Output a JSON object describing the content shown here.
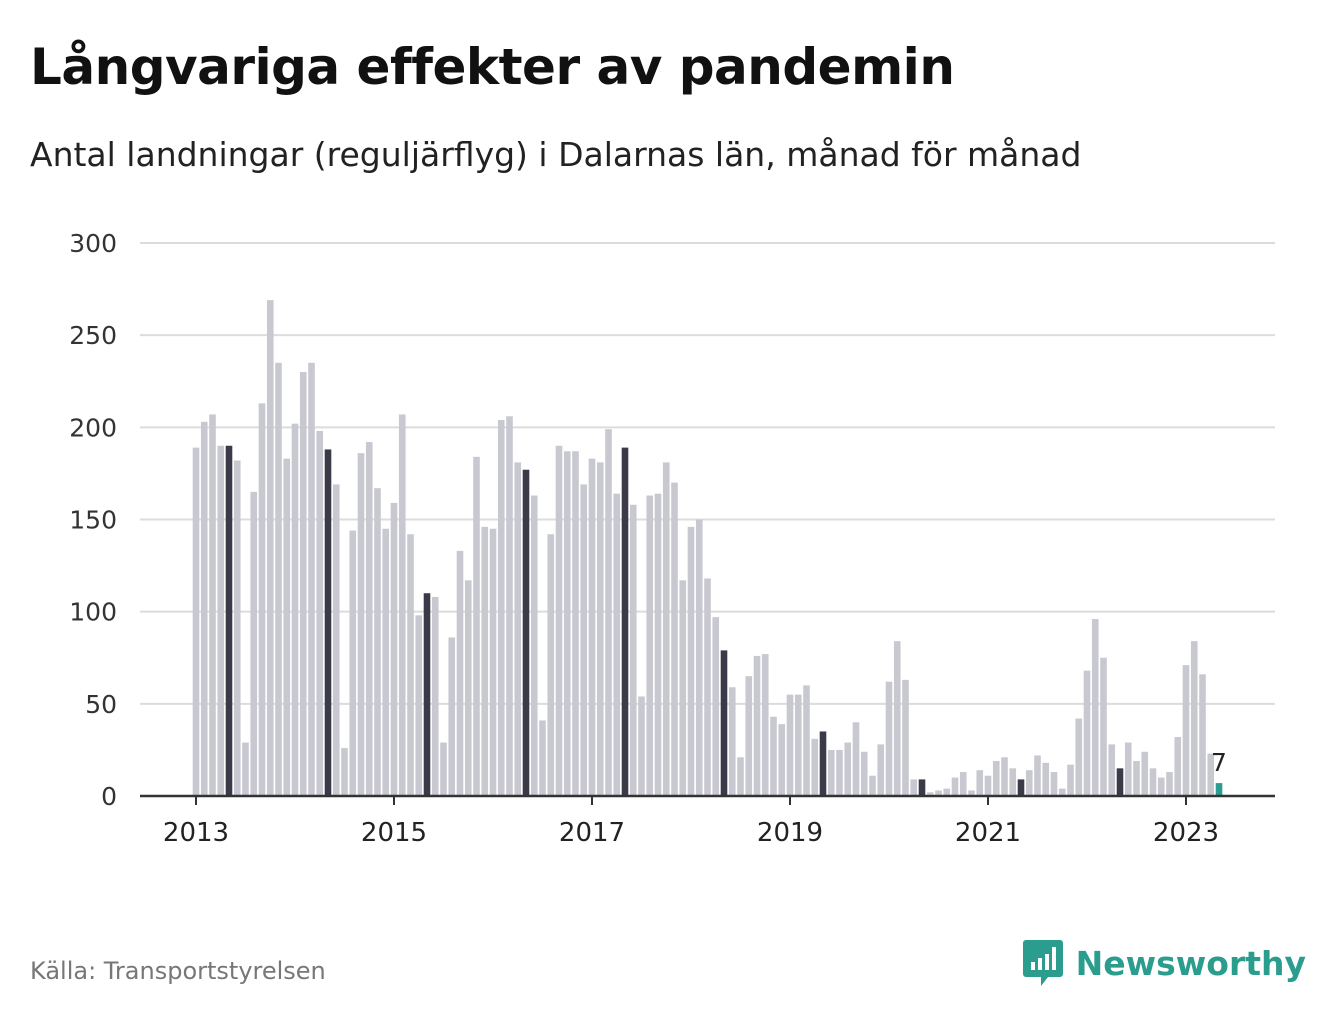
{
  "title": "Långvariga effekter av pandemin",
  "subtitle": "Antal landningar (reguljärflyg) i Dalarnas län, månad för månad",
  "source": "Källa: Transportstyrelsen",
  "brand": {
    "name": "Newsworthy",
    "icon": "newsworthy-logo-icon"
  },
  "colors": {
    "normal": "#c8c8d0",
    "highlight": "#3a3a48",
    "latest": "#2a9d8f",
    "grid": "#dcdcdc",
    "axis": "#333333"
  },
  "chart_data": {
    "type": "bar",
    "ylim": [
      0,
      300
    ],
    "yticks": [
      0,
      50,
      100,
      150,
      200,
      250,
      300
    ],
    "xticks": [
      "2013",
      "2015",
      "2017",
      "2019",
      "2021",
      "2023"
    ],
    "start": "2013-01",
    "highlight_months": [
      "2013-05",
      "2014-05",
      "2015-05",
      "2016-05",
      "2017-05",
      "2018-05",
      "2019-05",
      "2020-05",
      "2021-05",
      "2022-05"
    ],
    "latest_label": "7",
    "values": [
      189,
      203,
      207,
      190,
      190,
      182,
      29,
      165,
      213,
      269,
      235,
      183,
      202,
      230,
      235,
      198,
      188,
      169,
      26,
      144,
      186,
      192,
      167,
      145,
      159,
      207,
      142,
      98,
      110,
      108,
      29,
      86,
      133,
      117,
      184,
      146,
      145,
      204,
      206,
      181,
      177,
      163,
      41,
      142,
      190,
      187,
      187,
      169,
      183,
      181,
      199,
      164,
      189,
      158,
      54,
      163,
      164,
      181,
      170,
      117,
      146,
      150,
      118,
      97,
      79,
      59,
      21,
      65,
      76,
      77,
      43,
      39,
      55,
      55,
      60,
      31,
      35,
      25,
      25,
      29,
      40,
      24,
      11,
      28,
      62,
      84,
      63,
      9,
      9,
      2,
      3,
      4,
      10,
      13,
      3,
      14,
      11,
      19,
      21,
      15,
      9,
      14,
      22,
      18,
      13,
      4,
      17,
      42,
      68,
      96,
      75,
      28,
      15,
      29,
      19,
      24,
      15,
      10,
      13,
      32,
      71,
      84,
      66,
      23,
      7
    ]
  }
}
